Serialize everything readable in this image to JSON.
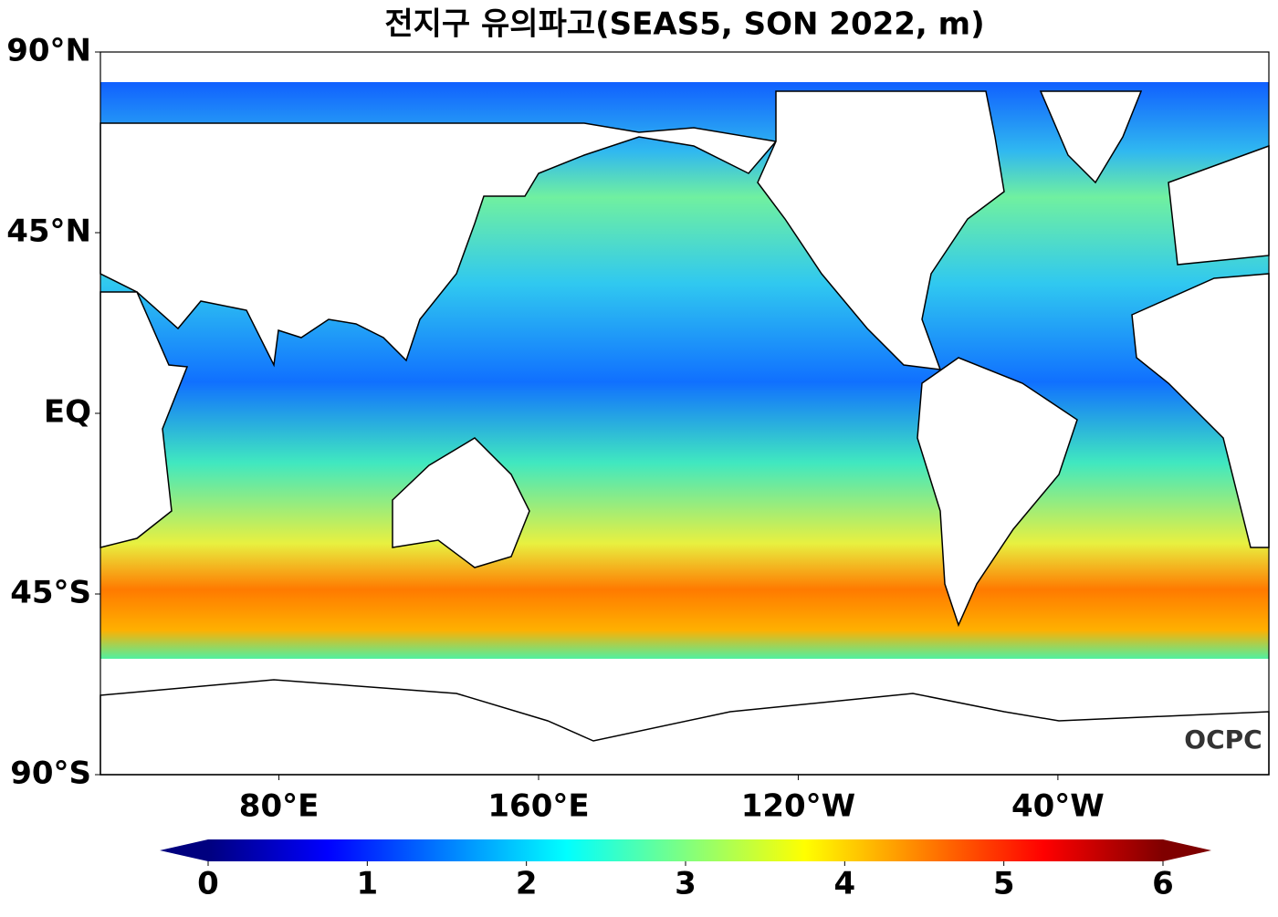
{
  "chart_data": {
    "type": "map",
    "title": "전지구 유의파고(SEAS5, SON 2022, m)",
    "xlim": [
      25,
      385
    ],
    "ylim": [
      -90,
      90
    ],
    "xticks": [
      {
        "value": 80,
        "label": "80°E"
      },
      {
        "value": 160,
        "label": "160°E"
      },
      {
        "value": -120,
        "label": "120°W"
      },
      {
        "value": -40,
        "label": "40°W"
      }
    ],
    "yticks": [
      {
        "value": 90,
        "label": "90°N"
      },
      {
        "value": 45,
        "label": "45°N"
      },
      {
        "value": 0,
        "label": "EQ"
      },
      {
        "value": -45,
        "label": "45°S"
      },
      {
        "value": -90,
        "label": "90°S"
      }
    ],
    "colorbar": {
      "lim": [
        0,
        6
      ],
      "ticks": [
        0,
        1,
        2,
        3,
        4,
        5,
        6
      ],
      "colormap": "jet",
      "extend": "both"
    },
    "logo": "OCPC"
  }
}
